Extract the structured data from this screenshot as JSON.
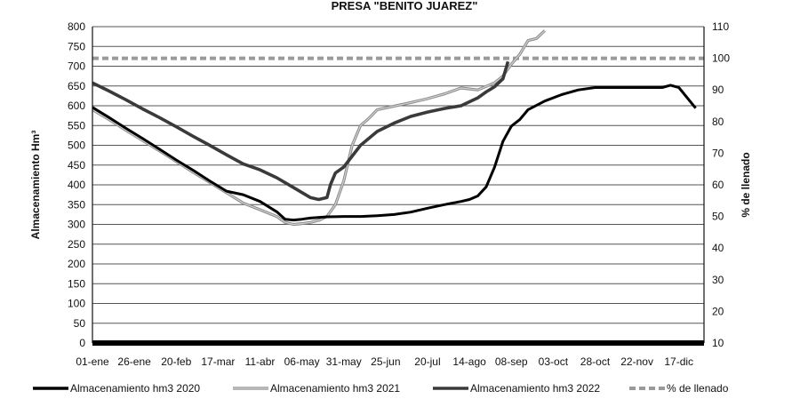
{
  "chart_data": {
    "type": "line",
    "title": "PRESA \"BENITO JUAREZ\"",
    "ylabel": "Almacenamiento Hm³",
    "y2label": "% de llenado",
    "ylim": [
      0,
      800
    ],
    "y2lim": [
      10,
      110
    ],
    "yticks": [
      "0",
      "50",
      "100",
      "150",
      "200",
      "250",
      "300",
      "350",
      "400",
      "450",
      "500",
      "550",
      "600",
      "650",
      "700",
      "750",
      "800"
    ],
    "y2ticks": [
      "10",
      "20",
      "30",
      "40",
      "50",
      "60",
      "70",
      "80",
      "90",
      "100",
      "110"
    ],
    "categories": [
      "01-ene",
      "26-ene",
      "20-feb",
      "17-mar",
      "11-abr",
      "06-may",
      "31-may",
      "25-jun",
      "20-jul",
      "14-ago",
      "08-sep",
      "03-oct",
      "28-oct",
      "22-nov",
      "17-dic"
    ],
    "grid": true,
    "legend_position": "bottom",
    "series": [
      {
        "name": "Almacenamiento hm3 2020",
        "color": "#000000",
        "style": "solid",
        "x": [
          0,
          10,
          20,
          30,
          40,
          50,
          60,
          70,
          80,
          90,
          100,
          110,
          115,
          120,
          125,
          130,
          140,
          150,
          160,
          170,
          180,
          190,
          200,
          210,
          220,
          225,
          230,
          235,
          240,
          245,
          250,
          255,
          260,
          270,
          280,
          290,
          300,
          310,
          320,
          330,
          340,
          345,
          350,
          360
        ],
        "values": [
          596,
          570,
          543,
          517,
          490,
          463,
          437,
          410,
          384,
          375,
          358,
          332,
          313,
          311,
          313,
          316,
          319,
          320,
          320,
          322,
          325,
          331,
          341,
          350,
          358,
          363,
          372,
          395,
          445,
          510,
          548,
          565,
          590,
          612,
          628,
          640,
          646,
          646,
          646,
          646,
          646,
          652,
          646,
          594
        ]
      },
      {
        "name": "Almacenamiento hm3 2021",
        "color": "#999999",
        "style": "solid",
        "x": [
          0,
          10,
          20,
          30,
          40,
          50,
          60,
          70,
          80,
          90,
          100,
          110,
          115,
          120,
          125,
          130,
          135,
          140,
          145,
          150,
          155,
          160,
          165,
          170,
          180,
          190,
          200,
          210,
          220,
          230,
          240,
          245,
          250,
          255,
          260,
          265,
          270
        ],
        "values": [
          590,
          565,
          538,
          512,
          486,
          459,
          432,
          406,
          380,
          354,
          337,
          320,
          305,
          300,
          302,
          305,
          310,
          320,
          350,
          410,
          500,
          550,
          568,
          590,
          599,
          608,
          618,
          630,
          645,
          640,
          658,
          675,
          705,
          730,
          765,
          770,
          790
        ]
      },
      {
        "name": "Almacenamiento hm3 2022",
        "color": "#3a3a3a",
        "style": "solid",
        "x": [
          0,
          10,
          20,
          30,
          40,
          50,
          60,
          70,
          80,
          90,
          100,
          110,
          120,
          130,
          135,
          140,
          142,
          145,
          150,
          160,
          170,
          180,
          190,
          200,
          210,
          220,
          230,
          235,
          240,
          245,
          248
        ],
        "values": [
          658,
          637,
          615,
          592,
          570,
          547,
          523,
          500,
          476,
          453,
          438,
          418,
          393,
          368,
          363,
          368,
          400,
          430,
          445,
          500,
          535,
          556,
          573,
          584,
          593,
          600,
          620,
          635,
          648,
          668,
          712
        ]
      },
      {
        "name": "% de llenado",
        "color": "#9a9a9a",
        "style": "dashed",
        "axis": "y2",
        "x": [
          0,
          365
        ],
        "values": [
          100,
          100
        ]
      }
    ]
  }
}
